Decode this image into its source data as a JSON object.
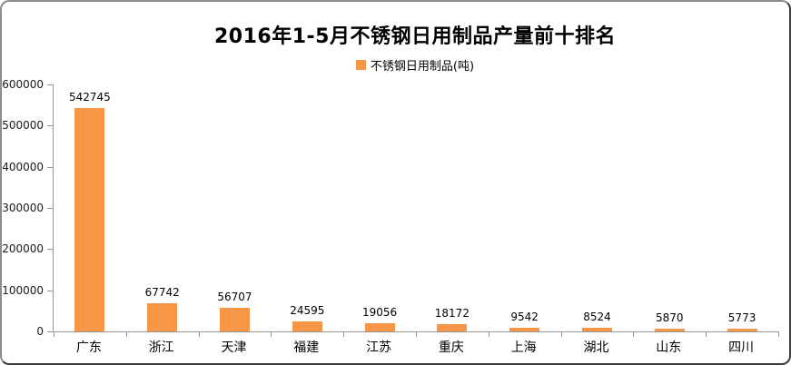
{
  "chart_data": {
    "type": "bar",
    "title": "2016年1-5月不锈钢日用制品产量前十排名",
    "series_name": "不锈钢日用制品(吨)",
    "categories": [
      "广东",
      "浙江",
      "天津",
      "福建",
      "江苏",
      "重庆",
      "上海",
      "湖北",
      "山东",
      "四川"
    ],
    "values": [
      542745,
      67742,
      56707,
      24595,
      19056,
      18172,
      9542,
      8524,
      5870,
      5773
    ],
    "value_labels_visible": true,
    "xlabel": "",
    "ylabel": "",
    "ylim": [
      0,
      600000
    ],
    "yticks": [
      0,
      100000,
      200000,
      300000,
      400000,
      500000,
      600000
    ],
    "grid": false,
    "legend_position": "top-center",
    "bar_color": "#F79646",
    "axis_color": "#969696",
    "text_color": "#000000",
    "background_color": "#FFFFFF"
  }
}
